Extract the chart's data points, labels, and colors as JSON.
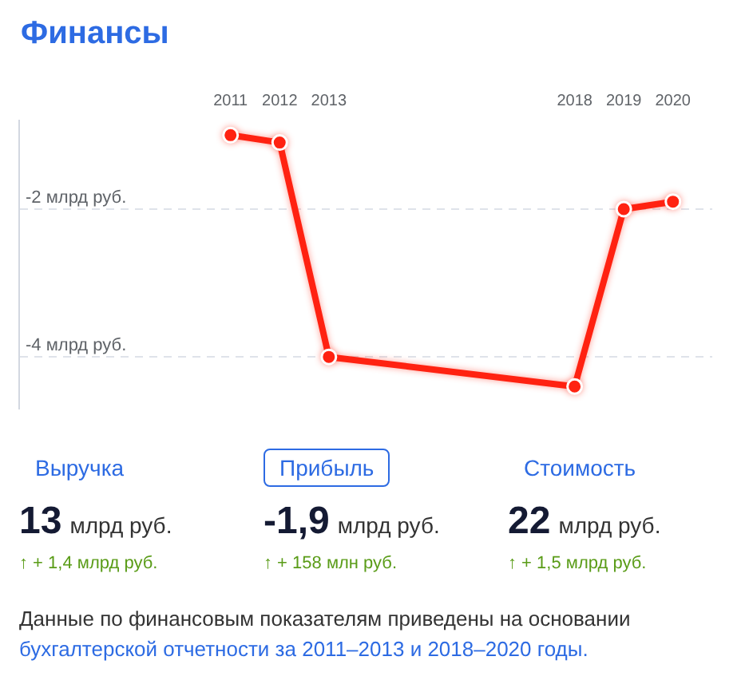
{
  "chart_data": [
    {
      "type": "line",
      "title": "Финансы",
      "x": [
        2011,
        2012,
        2013,
        2018,
        2019,
        2020
      ],
      "values": [
        -1.0,
        -1.1,
        -4.0,
        -4.4,
        -2.0,
        -1.9
      ],
      "color": "#ff2211",
      "xlim": [
        2006.7,
        2020.8
      ],
      "xticks": [
        2011,
        2012,
        2013,
        2018,
        2019,
        2020
      ],
      "ylim": [
        -4.7,
        -0.8
      ],
      "yticks": [
        {
          "value": -2,
          "label": "-2 млрд руб."
        },
        {
          "value": -4,
          "label": "-4 млрд руб."
        }
      ],
      "grid": "y",
      "marker": "circle",
      "line_style": "solid"
    },
    {
      "type": "other",
      "annotations": [
        "Выручка",
        "Прибыль",
        "Стоимость",
        "13 млрд руб.",
        "-1,9 млрд руб.",
        "22 млрд руб.",
        "↑ + 1,4 млрд руб.",
        "↑ + 158 млн руб.",
        "↑ + 1,5 млрд руб.",
        "Данные по финансовым показателям приведены на основании",
        "бухгалтерской отчетности за 2011–2013 и 2018–2020 годы."
      ]
    }
  ]
}
